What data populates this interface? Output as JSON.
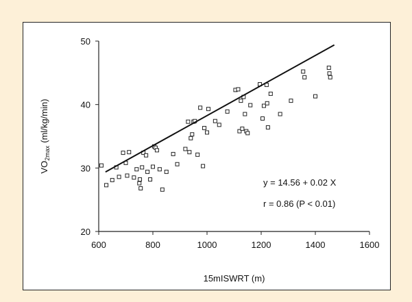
{
  "chart_data": {
    "type": "scatter",
    "xlabel": "15mISWRT (m)",
    "ylabel_main": "VO",
    "ylabel_sub": "2max",
    "ylabel_unit": "(ml/kg/min)",
    "xlim": [
      600,
      1600
    ],
    "ylim": [
      20,
      50
    ],
    "xticks": [
      600,
      800,
      1000,
      1200,
      1400,
      1600
    ],
    "yticks": [
      20,
      30,
      40,
      50
    ],
    "grid": false,
    "legend": "none",
    "regression": {
      "intercept": 14.56,
      "slope": 0.0237,
      "x_start": 625,
      "x_end": 1470
    },
    "annotations": [
      "y = 14.56 + 0.02 X",
      "r = 0.86 (P < 0.01)"
    ],
    "points": [
      [
        610,
        30.4
      ],
      [
        628,
        27.3
      ],
      [
        650,
        28.1
      ],
      [
        665,
        30.1
      ],
      [
        675,
        28.6
      ],
      [
        690,
        32.4
      ],
      [
        700,
        30.8
      ],
      [
        705,
        28.8
      ],
      [
        712,
        32.5
      ],
      [
        730,
        28.5
      ],
      [
        740,
        29.8
      ],
      [
        750,
        27.6
      ],
      [
        752,
        28.2
      ],
      [
        755,
        26.8
      ],
      [
        760,
        30.1
      ],
      [
        765,
        32.4
      ],
      [
        775,
        32.0
      ],
      [
        780,
        29.4
      ],
      [
        790,
        28.2
      ],
      [
        800,
        30.2
      ],
      [
        805,
        33.4
      ],
      [
        810,
        33.2
      ],
      [
        815,
        32.8
      ],
      [
        825,
        29.8
      ],
      [
        835,
        26.6
      ],
      [
        850,
        29.4
      ],
      [
        875,
        32.2
      ],
      [
        890,
        30.6
      ],
      [
        920,
        33.0
      ],
      [
        930,
        37.3
      ],
      [
        935,
        32.5
      ],
      [
        940,
        34.7
      ],
      [
        945,
        35.3
      ],
      [
        950,
        37.3
      ],
      [
        955,
        37.4
      ],
      [
        965,
        32.1
      ],
      [
        975,
        39.5
      ],
      [
        985,
        30.3
      ],
      [
        990,
        36.3
      ],
      [
        1000,
        35.6
      ],
      [
        1005,
        39.3
      ],
      [
        1030,
        37.4
      ],
      [
        1045,
        36.8
      ],
      [
        1075,
        38.9
      ],
      [
        1105,
        42.3
      ],
      [
        1115,
        42.4
      ],
      [
        1120,
        35.8
      ],
      [
        1125,
        40.6
      ],
      [
        1130,
        36.2
      ],
      [
        1135,
        41.2
      ],
      [
        1140,
        38.5
      ],
      [
        1145,
        35.8
      ],
      [
        1150,
        35.5
      ],
      [
        1160,
        39.9
      ],
      [
        1195,
        43.2
      ],
      [
        1205,
        37.8
      ],
      [
        1210,
        39.8
      ],
      [
        1220,
        43.1
      ],
      [
        1222,
        40.2
      ],
      [
        1225,
        36.4
      ],
      [
        1235,
        41.7
      ],
      [
        1270,
        38.5
      ],
      [
        1310,
        40.6
      ],
      [
        1355,
        45.2
      ],
      [
        1360,
        44.3
      ],
      [
        1400,
        41.3
      ],
      [
        1450,
        45.8
      ],
      [
        1452,
        44.9
      ],
      [
        1455,
        44.3
      ]
    ]
  }
}
